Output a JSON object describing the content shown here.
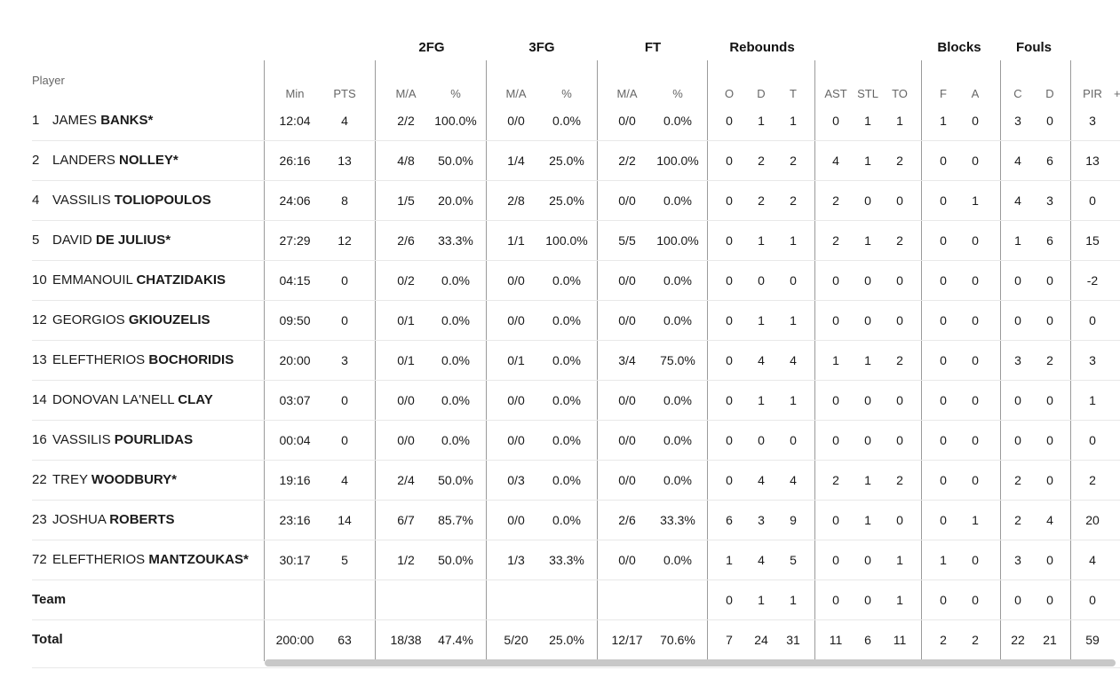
{
  "table": {
    "player_header": "Player",
    "groups": [
      {
        "key": "2fg",
        "label": "2FG"
      },
      {
        "key": "3fg",
        "label": "3FG"
      },
      {
        "key": "ft",
        "label": "FT"
      },
      {
        "key": "rebounds",
        "label": "Rebounds"
      },
      {
        "key": "blocks",
        "label": "Blocks"
      },
      {
        "key": "fouls",
        "label": "Fouls"
      }
    ],
    "columns": [
      "Min",
      "PTS",
      "M/A",
      "%",
      "M/A",
      "%",
      "M/A",
      "%",
      "O",
      "D",
      "T",
      "AST",
      "STL",
      "TO",
      "F",
      "A",
      "C",
      "D",
      "PIR"
    ],
    "cutoff_column_text": "+",
    "rows": [
      {
        "num": "1",
        "first": "JAMES",
        "last": "BANKS*",
        "cells": [
          "12:04",
          "4",
          "2/2",
          "100.0%",
          "0/0",
          "0.0%",
          "0/0",
          "0.0%",
          "0",
          "1",
          "1",
          "0",
          "1",
          "1",
          "1",
          "0",
          "3",
          "0",
          "3"
        ]
      },
      {
        "num": "2",
        "first": "LANDERS",
        "last": "NOLLEY*",
        "cells": [
          "26:16",
          "13",
          "4/8",
          "50.0%",
          "1/4",
          "25.0%",
          "2/2",
          "100.0%",
          "0",
          "2",
          "2",
          "4",
          "1",
          "2",
          "0",
          "0",
          "4",
          "6",
          "13"
        ]
      },
      {
        "num": "4",
        "first": "VASSILIS",
        "last": "TOLIOPOULOS",
        "cells": [
          "24:06",
          "8",
          "1/5",
          "20.0%",
          "2/8",
          "25.0%",
          "0/0",
          "0.0%",
          "0",
          "2",
          "2",
          "2",
          "0",
          "0",
          "0",
          "1",
          "4",
          "3",
          "0"
        ]
      },
      {
        "num": "5",
        "first": "DAVID",
        "last": "DE JULIUS*",
        "cells": [
          "27:29",
          "12",
          "2/6",
          "33.3%",
          "1/1",
          "100.0%",
          "5/5",
          "100.0%",
          "0",
          "1",
          "1",
          "2",
          "1",
          "2",
          "0",
          "0",
          "1",
          "6",
          "15"
        ]
      },
      {
        "num": "10",
        "first": "EMMANOUIL",
        "last": "CHATZIDAKIS",
        "cells": [
          "04:15",
          "0",
          "0/2",
          "0.0%",
          "0/0",
          "0.0%",
          "0/0",
          "0.0%",
          "0",
          "0",
          "0",
          "0",
          "0",
          "0",
          "0",
          "0",
          "0",
          "0",
          "-2"
        ]
      },
      {
        "num": "12",
        "first": "GEORGIOS",
        "last": "GKIOUZELIS",
        "cells": [
          "09:50",
          "0",
          "0/1",
          "0.0%",
          "0/0",
          "0.0%",
          "0/0",
          "0.0%",
          "0",
          "1",
          "1",
          "0",
          "0",
          "0",
          "0",
          "0",
          "0",
          "0",
          "0"
        ]
      },
      {
        "num": "13",
        "first": "ELEFTHERIOS",
        "last": "BOCHORIDIS",
        "cells": [
          "20:00",
          "3",
          "0/1",
          "0.0%",
          "0/1",
          "0.0%",
          "3/4",
          "75.0%",
          "0",
          "4",
          "4",
          "1",
          "1",
          "2",
          "0",
          "0",
          "3",
          "2",
          "3"
        ]
      },
      {
        "num": "14",
        "first": "DONOVAN LA'NELL",
        "last": "CLAY",
        "cells": [
          "03:07",
          "0",
          "0/0",
          "0.0%",
          "0/0",
          "0.0%",
          "0/0",
          "0.0%",
          "0",
          "1",
          "1",
          "0",
          "0",
          "0",
          "0",
          "0",
          "0",
          "0",
          "1"
        ]
      },
      {
        "num": "16",
        "first": "VASSILIS",
        "last": "POURLIDAS",
        "cells": [
          "00:04",
          "0",
          "0/0",
          "0.0%",
          "0/0",
          "0.0%",
          "0/0",
          "0.0%",
          "0",
          "0",
          "0",
          "0",
          "0",
          "0",
          "0",
          "0",
          "0",
          "0",
          "0"
        ]
      },
      {
        "num": "22",
        "first": "TREY",
        "last": "WOODBURY*",
        "cells": [
          "19:16",
          "4",
          "2/4",
          "50.0%",
          "0/3",
          "0.0%",
          "0/0",
          "0.0%",
          "0",
          "4",
          "4",
          "2",
          "1",
          "2",
          "0",
          "0",
          "2",
          "0",
          "2"
        ]
      },
      {
        "num": "23",
        "first": "JOSHUA",
        "last": "ROBERTS",
        "cells": [
          "23:16",
          "14",
          "6/7",
          "85.7%",
          "0/0",
          "0.0%",
          "2/6",
          "33.3%",
          "6",
          "3",
          "9",
          "0",
          "1",
          "0",
          "0",
          "1",
          "2",
          "4",
          "20"
        ]
      },
      {
        "num": "72",
        "first": "ELEFTHERIOS",
        "last": "MANTZOUKAS*",
        "cells": [
          "30:17",
          "5",
          "1/2",
          "50.0%",
          "1/3",
          "33.3%",
          "0/0",
          "0.0%",
          "1",
          "4",
          "5",
          "0",
          "0",
          "1",
          "1",
          "0",
          "3",
          "0",
          "4"
        ]
      },
      {
        "num": "",
        "first": "Team",
        "last": "",
        "bold": true,
        "cells": [
          "",
          "",
          "",
          "",
          "",
          "",
          "",
          "",
          "0",
          "1",
          "1",
          "0",
          "0",
          "1",
          "0",
          "0",
          "0",
          "0",
          "0"
        ]
      },
      {
        "num": "",
        "first": "Total",
        "last": "",
        "bold": true,
        "cells": [
          "200:00",
          "63",
          "18/38",
          "47.4%",
          "5/20",
          "25.0%",
          "12/17",
          "70.6%",
          "7",
          "24",
          "31",
          "11",
          "6",
          "11",
          "2",
          "2",
          "22",
          "21",
          "59"
        ]
      }
    ]
  }
}
